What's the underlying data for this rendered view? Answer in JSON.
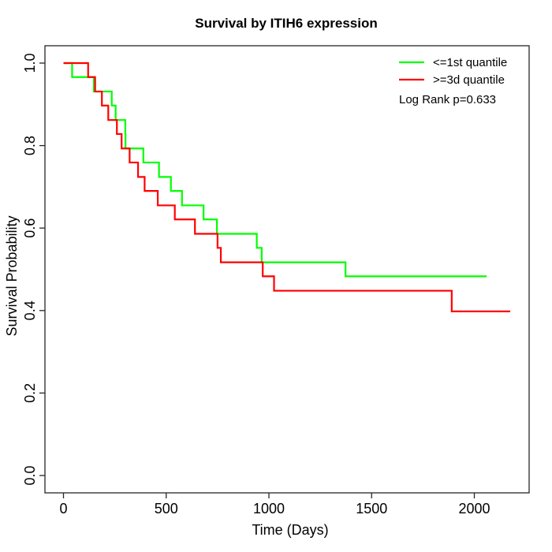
{
  "title": "Survival by ITIH6 expression",
  "axes": {
    "x_label": "Time (Days)",
    "y_label": "Survival Probability",
    "x_ticks": [
      {
        "label": "0",
        "value": 0
      },
      {
        "label": "500",
        "value": 500
      },
      {
        "label": "1000",
        "value": 1000
      },
      {
        "label": "1500",
        "value": 1500
      },
      {
        "label": "2000",
        "value": 2000
      }
    ],
    "y_ticks": [
      {
        "label": "0.0",
        "value": 0.0
      },
      {
        "label": "0.2",
        "value": 0.2
      },
      {
        "label": "0.4",
        "value": 0.4
      },
      {
        "label": "0.6",
        "value": 0.6
      },
      {
        "label": "0.8",
        "value": 0.8
      },
      {
        "label": "1.0",
        "value": 1.0
      }
    ]
  },
  "legend": {
    "items": [
      {
        "label": "<=1st quantile",
        "color": "#00ff00"
      },
      {
        "label": ">=3d quantile",
        "color": "#ff0000"
      }
    ],
    "annotation": "Log Rank p=0.633"
  },
  "chart_data": {
    "type": "line",
    "variant": "kaplan_meier_step",
    "title": "Survival by ITIH6 expression",
    "xlabel": "Time (Days)",
    "ylabel": "Survival Probability",
    "xlim": [
      0,
      2260
    ],
    "ylim": [
      0.0,
      1.0
    ],
    "grid": false,
    "legend_position": "top-right",
    "annotation": "Log Rank p=0.633",
    "series": [
      {
        "name": "<=1st quantile",
        "color": "#00ff00",
        "end_time": 2060,
        "steps": [
          [
            0,
            1.0
          ],
          [
            42,
            0.966
          ],
          [
            148,
            0.931
          ],
          [
            235,
            0.897
          ],
          [
            254,
            0.862
          ],
          [
            301,
            0.828
          ],
          [
            302,
            0.793
          ],
          [
            389,
            0.759
          ],
          [
            465,
            0.724
          ],
          [
            523,
            0.69
          ],
          [
            577,
            0.655
          ],
          [
            682,
            0.621
          ],
          [
            747,
            0.586
          ],
          [
            941,
            0.552
          ],
          [
            965,
            0.517
          ],
          [
            1373,
            0.483
          ]
        ]
      },
      {
        "name": ">=3d quantile",
        "color": "#ff0000",
        "end_time": 2175,
        "steps": [
          [
            0,
            1.0
          ],
          [
            120,
            0.966
          ],
          [
            154,
            0.931
          ],
          [
            187,
            0.897
          ],
          [
            218,
            0.862
          ],
          [
            260,
            0.828
          ],
          [
            283,
            0.793
          ],
          [
            322,
            0.759
          ],
          [
            363,
            0.724
          ],
          [
            395,
            0.69
          ],
          [
            459,
            0.655
          ],
          [
            542,
            0.621
          ],
          [
            640,
            0.586
          ],
          [
            750,
            0.552
          ],
          [
            766,
            0.517
          ],
          [
            970,
            0.483
          ],
          [
            1025,
            0.448
          ],
          [
            1890,
            0.398
          ]
        ]
      }
    ]
  }
}
